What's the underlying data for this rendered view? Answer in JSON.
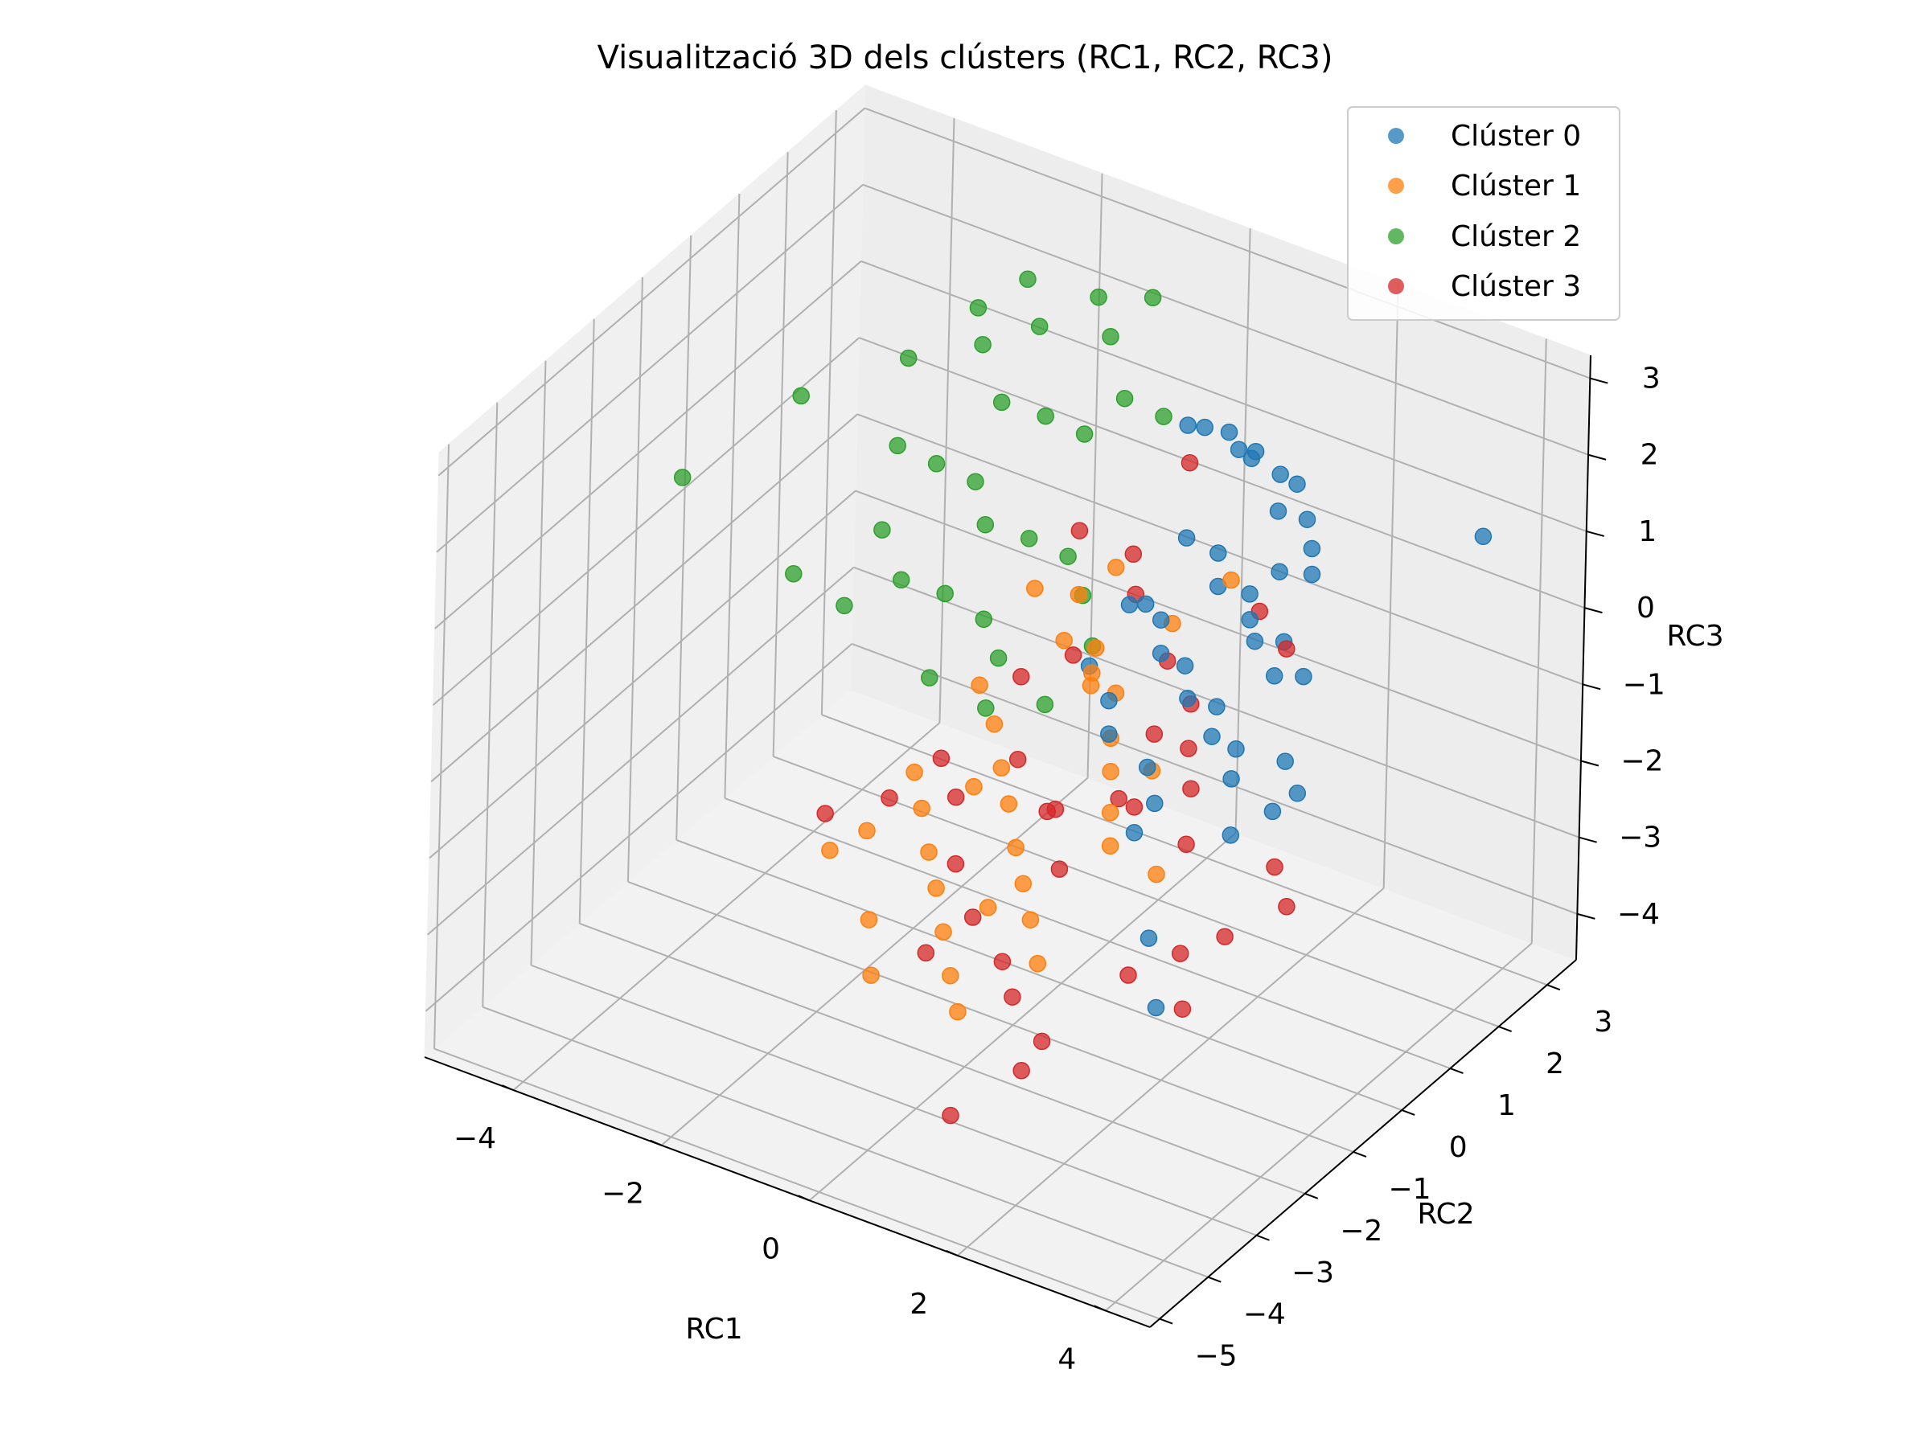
{
  "chart_data": {
    "type": "scatter",
    "projection": "3d",
    "title": "Visualització 3D dels clústers (RC1, RC2, RC3)",
    "xlabel": "RC1",
    "ylabel": "RC2",
    "zlabel": "RC3",
    "xlim": [
      -5.2,
      4.6
    ],
    "ylim": [
      -5.2,
      3.6
    ],
    "zlim": [
      -4.6,
      3.3
    ],
    "xticks": [
      "−4",
      "−2",
      "0",
      "2",
      "4"
    ],
    "yticks": [
      "−5",
      "−4",
      "−3",
      "−2",
      "−1",
      "0",
      "1",
      "2",
      "3"
    ],
    "zticks": [
      "−4",
      "−3",
      "−2",
      "−1",
      "0",
      "1",
      "2",
      "3"
    ],
    "grid": true,
    "legend_position": "top-right",
    "series": [
      {
        "name": "Clúster 0",
        "color": "#1f77b4",
        "points": [
          [
            0.5,
            1.6,
            2.0
          ],
          [
            0.6,
            1.8,
            1.9
          ],
          [
            0.8,
            2.0,
            1.8
          ],
          [
            1.0,
            1.9,
            1.7
          ],
          [
            1.1,
            2.1,
            1.6
          ],
          [
            1.3,
            1.7,
            1.8
          ],
          [
            1.5,
            2.0,
            1.5
          ],
          [
            1.6,
            2.2,
            1.3
          ],
          [
            1.8,
            1.5,
            1.4
          ],
          [
            2.0,
            1.8,
            1.2
          ],
          [
            2.2,
            1.6,
            1.0
          ],
          [
            2.4,
            1.3,
            0.9
          ],
          [
            0.9,
            1.0,
            1.0
          ],
          [
            1.2,
            1.2,
            0.8
          ],
          [
            1.4,
            0.9,
            0.6
          ],
          [
            1.7,
            1.1,
            0.5
          ],
          [
            1.9,
            0.8,
            0.4
          ],
          [
            2.1,
            0.6,
            0.3
          ],
          [
            2.3,
            0.9,
            0.2
          ],
          [
            2.5,
            0.4,
            0.1
          ],
          [
            2.7,
            0.7,
            0.0
          ],
          [
            0.6,
            0.3,
            0.4
          ],
          [
            0.9,
            0.5,
            0.2
          ],
          [
            1.1,
            0.2,
            0.0
          ],
          [
            1.3,
            0.4,
            -0.2
          ],
          [
            1.6,
            0.0,
            -0.3
          ],
          [
            1.8,
            0.3,
            -0.5
          ],
          [
            2.0,
            -0.1,
            -0.6
          ],
          [
            2.2,
            0.1,
            -0.8
          ],
          [
            2.4,
            -0.3,
            -0.9
          ],
          [
            0.4,
            -0.2,
            -0.2
          ],
          [
            0.8,
            -0.4,
            -0.4
          ],
          [
            1.0,
            -0.7,
            -0.6
          ],
          [
            1.4,
            -0.5,
            -1.0
          ],
          [
            1.7,
            -0.8,
            -1.2
          ],
          [
            2.6,
            -0.6,
            -1.4
          ],
          [
            2.9,
            -0.2,
            -1.2
          ],
          [
            3.1,
            0.0,
            -1.0
          ],
          [
            2.8,
            0.2,
            -0.8
          ],
          [
            3.6,
            3.0,
            0.9
          ],
          [
            2.3,
            -1.8,
            -2.2
          ],
          [
            2.8,
            -2.4,
            -2.6
          ],
          [
            1.5,
            -0.9,
            -1.6
          ],
          [
            0.5,
            0.8,
            0.1
          ],
          [
            1.9,
            1.4,
            0.7
          ]
        ]
      },
      {
        "name": "Clúster 1",
        "color": "#ff7f0e",
        "points": [
          [
            -0.8,
            0.5,
            0.0
          ],
          [
            -0.4,
            0.8,
            -0.1
          ],
          [
            -0.2,
            0.2,
            -0.3
          ],
          [
            0.1,
            0.4,
            -0.4
          ],
          [
            0.3,
            0.0,
            -0.6
          ],
          [
            0.5,
            -0.3,
            -0.2
          ],
          [
            0.7,
            -0.1,
            -0.5
          ],
          [
            0.9,
            -0.5,
            -0.8
          ],
          [
            1.1,
            -0.8,
            -1.0
          ],
          [
            1.3,
            -1.1,
            -1.3
          ],
          [
            1.5,
            -1.4,
            -1.5
          ],
          [
            -1.0,
            -0.3,
            -0.9
          ],
          [
            -0.6,
            -0.6,
            -1.1
          ],
          [
            -0.3,
            -0.9,
            -1.4
          ],
          [
            0.0,
            -1.2,
            -1.6
          ],
          [
            0.3,
            -1.5,
            -1.9
          ],
          [
            0.6,
            -1.8,
            -2.1
          ],
          [
            0.9,
            -2.1,
            -2.3
          ],
          [
            1.2,
            -2.4,
            -2.6
          ],
          [
            -1.4,
            -1.0,
            -1.8
          ],
          [
            -1.1,
            -1.3,
            -2.0
          ],
          [
            -0.8,
            -1.6,
            -2.3
          ],
          [
            -0.5,
            -1.9,
            -2.5
          ],
          [
            -0.2,
            -2.2,
            -2.8
          ],
          [
            0.1,
            -2.5,
            -3.1
          ],
          [
            0.4,
            -2.8,
            -3.3
          ],
          [
            -1.7,
            -1.5,
            -2.4
          ],
          [
            -2.0,
            -1.8,
            -2.6
          ],
          [
            -1.2,
            -2.2,
            -3.0
          ],
          [
            -0.9,
            -2.6,
            -3.4
          ],
          [
            1.7,
            0.7,
            0.9
          ],
          [
            0.8,
            0.9,
            -0.1
          ],
          [
            -0.1,
            1.1,
            0.2
          ],
          [
            1.4,
            -0.4,
            -1.1
          ],
          [
            2.0,
            -1.2,
            -1.8
          ],
          [
            -0.6,
            -1.0,
            -1.7
          ],
          [
            0.2,
            -1.9,
            -2.5
          ]
        ]
      },
      {
        "name": "Clúster 2",
        "color": "#2ca02c",
        "points": [
          [
            -4.6,
            -1.0,
            0.9
          ],
          [
            -3.8,
            0.2,
            1.6
          ],
          [
            -3.2,
            1.5,
            1.6
          ],
          [
            -2.6,
            2.0,
            2.2
          ],
          [
            -2.2,
            2.4,
            2.5
          ],
          [
            -1.9,
            2.2,
            2.1
          ],
          [
            -1.5,
            2.8,
            2.3
          ],
          [
            -1.2,
            2.6,
            2.0
          ],
          [
            -0.9,
            3.0,
            2.4
          ],
          [
            -2.4,
            1.8,
            1.9
          ],
          [
            -2.0,
            1.6,
            1.4
          ],
          [
            -1.6,
            1.9,
            1.2
          ],
          [
            -1.2,
            2.1,
            1.0
          ],
          [
            -0.8,
            2.3,
            1.5
          ],
          [
            -0.4,
            2.5,
            1.3
          ],
          [
            -3.0,
            1.0,
            0.8
          ],
          [
            -2.6,
            1.2,
            0.6
          ],
          [
            -2.2,
            1.4,
            0.4
          ],
          [
            -1.8,
            1.0,
            0.2
          ],
          [
            -1.4,
            1.3,
            0.0
          ],
          [
            -1.0,
            1.5,
            -0.2
          ],
          [
            -0.6,
            1.2,
            -0.4
          ],
          [
            -2.8,
            0.4,
            0.1
          ],
          [
            -2.4,
            0.2,
            -0.3
          ],
          [
            -2.0,
            0.5,
            -0.5
          ],
          [
            -1.6,
            0.7,
            -0.8
          ],
          [
            -1.2,
            0.4,
            -1.0
          ],
          [
            -3.4,
            -0.5,
            -0.2
          ],
          [
            -2.9,
            -0.2,
            -0.6
          ],
          [
            -1.8,
            -0.1,
            -1.2
          ],
          [
            -1.1,
            0.0,
            -1.4
          ],
          [
            -0.5,
            0.3,
            -1.3
          ],
          [
            -0.2,
            0.8,
            -0.7
          ]
        ]
      },
      {
        "name": "Clúster 3",
        "color": "#d62728",
        "points": [
          [
            -2.2,
            -1.6,
            -2.3
          ],
          [
            -0.6,
            1.1,
            0.5
          ],
          [
            0.0,
            1.3,
            0.3
          ],
          [
            0.3,
            0.9,
            0.1
          ],
          [
            0.6,
            1.5,
            1.6
          ],
          [
            1.0,
            0.5,
            -0.3
          ],
          [
            1.2,
            0.7,
            -0.9
          ],
          [
            1.5,
            0.2,
            -1.1
          ],
          [
            1.8,
            -0.2,
            -1.3
          ],
          [
            1.3,
            -0.6,
            -1.5
          ],
          [
            0.9,
            -0.3,
            -1.7
          ],
          [
            0.2,
            -0.7,
            -1.9
          ],
          [
            -0.4,
            -0.4,
            -1.6
          ],
          [
            -0.9,
            -0.9,
            -2.0
          ],
          [
            -1.3,
            -0.6,
            -1.8
          ],
          [
            -0.5,
            -1.5,
            -2.4
          ],
          [
            0.0,
            -1.9,
            -2.7
          ],
          [
            0.6,
            -2.2,
            -2.9
          ],
          [
            1.0,
            -2.6,
            -3.0
          ],
          [
            1.6,
            -2.9,
            -3.2
          ],
          [
            2.1,
            -1.9,
            -2.7
          ],
          [
            2.6,
            -1.6,
            -2.4
          ],
          [
            3.0,
            -1.3,
            -2.2
          ],
          [
            3.2,
            -0.6,
            -1.6
          ],
          [
            2.4,
            0.8,
            0.2
          ],
          [
            1.9,
            1.0,
            0.4
          ],
          [
            -0.2,
            0.4,
            -0.6
          ],
          [
            -0.7,
            0.1,
            -0.9
          ],
          [
            0.7,
            -1.2,
            -2.2
          ],
          [
            1.4,
            -3.0,
            -3.6
          ],
          [
            0.4,
            -2.9,
            -4.6
          ],
          [
            2.9,
            -2.0,
            -2.8
          ],
          [
            3.5,
            -0.8,
            -1.9
          ],
          [
            -1.6,
            -1.2,
            -2.1
          ],
          [
            0.5,
            -1.0,
            -1.6
          ],
          [
            1.1,
            0.1,
            -1.0
          ],
          [
            2.2,
            -0.9,
            -1.5
          ],
          [
            -0.3,
            -2.4,
            -3.0
          ]
        ]
      }
    ]
  }
}
